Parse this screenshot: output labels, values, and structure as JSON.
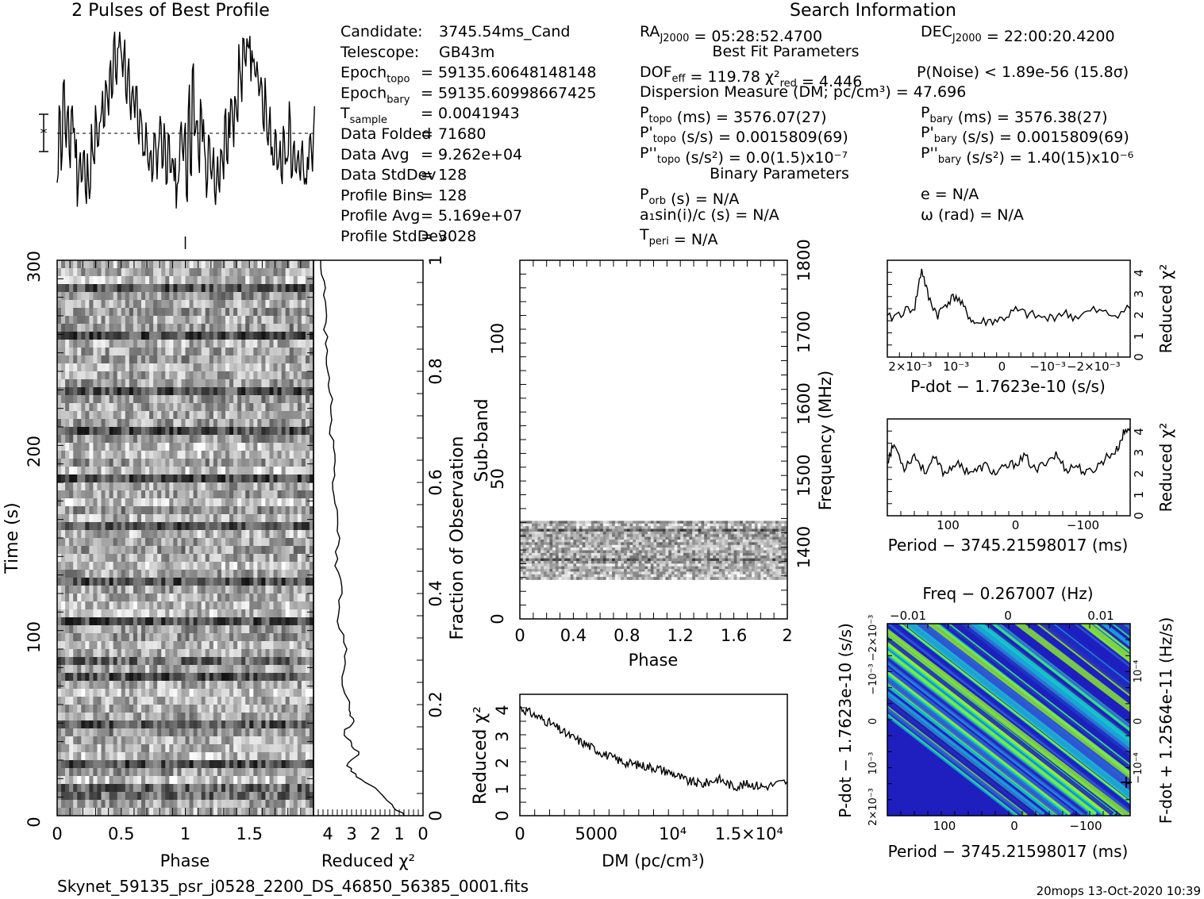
{
  "profile_title": "2 Pulses of Best Profile",
  "search_title": "Search Information",
  "info_left": [
    {
      "label": "Candidate:",
      "value": "3745.54ms_Cand"
    },
    {
      "label": "Telescope:",
      "value": "GB43m"
    },
    {
      "label": "Epoch",
      "sub": "topo",
      "value": "= 59135.60648148148"
    },
    {
      "label": "Epoch",
      "sub": "bary",
      "value": "= 59135.60998667425"
    },
    {
      "label": "T",
      "sub": "sample",
      "value": "=   0.0041943"
    },
    {
      "label": "Data Folded",
      "value": "=   71680"
    },
    {
      "label": "Data Avg",
      "value": "=   9.262e+04"
    },
    {
      "label": "Data StdDev",
      "value": "=   128"
    },
    {
      "label": "Profile Bins",
      "value": "=   128"
    },
    {
      "label": "Profile Avg",
      "value": "=   5.169e+07"
    },
    {
      "label": "Profile StdDev",
      "value": "=   3028"
    }
  ],
  "ra": "RA_J2000 = 05:28:52.4700",
  "dec": "DEC_J2000 = 22:00:20.4200",
  "best_fit_title": "Best Fit Parameters",
  "dof": "DOF_eff = 119.78  χ²_red = 4.446",
  "pnoise": "P(Noise) < 1.89e-56   (15.8σ)",
  "dm_line": "Dispersion Measure (DM; pc/cm³) = 47.696",
  "p_topo": "P_topo (ms) =  3576.07(27)",
  "p_bary": "P_bary (ms) =  3576.38(27)",
  "pd_topo": "P'_topo (s/s) =  0.0015809(69)",
  "pd_bary": "P'_bary (s/s) =  0.0015809(69)",
  "pdd_topo": "P''_topo (s/s²) = 0.0(1.5)x10⁻⁷",
  "pdd_bary": "P''_bary (s/s²) =  1.40(15)x10⁻⁶",
  "binary_title": "Binary Parameters",
  "porb": "P_orb (s) = N/A",
  "ecc": "e = N/A",
  "a1": "a₁sin(i)/c (s) = N/A",
  "omega": "ω (rad) = N/A",
  "tperi": "T_peri = N/A",
  "footer_file": "Skynet_59135_psr_j0528_2200_DS_46850_56385_0001.fits",
  "footer_stamp": "20mops 13-Oct-2020 10:39",
  "chart_data": [
    {
      "type": "line",
      "panel": "pulse-profile",
      "title": "2 Pulses of Best Profile",
      "note": "128 bins shown twice, normalized amplitude",
      "values": [
        0.18,
        0.65,
        0.32,
        0.78,
        0.42,
        0.55,
        0.28,
        0.62,
        0.48,
        0.38,
        0.15,
        0.4,
        0.22,
        0.35,
        0.12,
        0.3,
        0.2,
        0.45,
        0.28,
        0.55,
        0.35,
        0.5,
        0.62,
        0.45,
        0.72,
        0.6,
        0.85,
        0.7,
        0.95,
        0.78,
        0.88,
        1.0,
        0.82,
        0.9,
        0.7,
        0.8,
        0.62,
        0.75,
        0.55,
        0.68,
        0.48,
        0.58,
        0.42,
        0.3,
        0.5,
        0.25,
        0.35,
        0.22,
        0.45,
        0.3,
        0.4,
        0.55,
        0.32,
        0.48,
        0.28,
        0.38,
        0.2,
        0.35,
        0.25,
        0.15,
        0.3,
        0.45,
        0.35,
        0.52
      ]
    },
    {
      "type": "heatmap",
      "panel": "time-phase",
      "xlabel": "Phase",
      "ylabel": "Time (s)",
      "xlim": [
        0,
        2
      ],
      "ylim": [
        0,
        300
      ],
      "xticks": [
        "0",
        "0.5",
        "1",
        "1.5"
      ],
      "yticks": [
        "0",
        "100",
        "200",
        "300"
      ]
    },
    {
      "type": "line",
      "panel": "time-chi2",
      "xlabel": "Reduced χ²",
      "ylabel": "Fraction of Observation",
      "xlim": [
        4.6,
        0
      ],
      "ylim": [
        0,
        1
      ],
      "xticks": [
        "4",
        "3",
        "2",
        "1",
        "0"
      ],
      "yticks": [
        "0",
        "0.2",
        "0.4",
        "0.6",
        "0.8",
        "1"
      ],
      "points": [
        [
          0.8,
          0
        ],
        [
          1.3,
          0.02
        ],
        [
          2.0,
          0.05
        ],
        [
          2.8,
          0.07
        ],
        [
          3.2,
          0.09
        ],
        [
          2.7,
          0.11
        ],
        [
          3.0,
          0.13
        ],
        [
          3.3,
          0.15
        ],
        [
          2.9,
          0.17
        ],
        [
          3.1,
          0.19
        ],
        [
          3.4,
          0.25
        ],
        [
          3.2,
          0.3
        ],
        [
          3.6,
          0.35
        ],
        [
          3.4,
          0.4
        ],
        [
          3.7,
          0.45
        ],
        [
          3.5,
          0.5
        ],
        [
          3.6,
          0.55
        ],
        [
          3.8,
          0.6
        ],
        [
          3.7,
          0.65
        ],
        [
          3.9,
          0.7
        ],
        [
          3.8,
          0.75
        ],
        [
          4.0,
          0.8
        ],
        [
          4.1,
          0.85
        ],
        [
          4.05,
          0.9
        ],
        [
          4.1,
          0.95
        ],
        [
          4.3,
          1.0
        ]
      ]
    },
    {
      "type": "heatmap",
      "panel": "subband-phase",
      "xlabel": "Phase",
      "ylabel": "Sub-band",
      "y2label": "Frequency (MHz)",
      "xlim": [
        0,
        2
      ],
      "ylim": [
        0,
        128
      ],
      "y2lim": [
        1300,
        1800
      ],
      "xticks": [
        "0",
        "0.4",
        "0.8",
        "1.2",
        "1.6",
        "2"
      ],
      "yticks": [
        "0",
        "50",
        "100"
      ],
      "y2ticks": [
        "1400",
        "1500",
        "1600",
        "1700",
        "1800"
      ],
      "active_subbands": [
        14,
        35
      ]
    },
    {
      "type": "line",
      "panel": "dm-chi2",
      "xlabel": "DM (pc/cm³)",
      "ylabel": "Reduced χ²",
      "xlim": [
        0,
        17500
      ],
      "ylim": [
        0,
        4.6
      ],
      "xticks": [
        "0",
        "5000",
        "10⁴",
        "1.5×10⁴"
      ],
      "yticks": [
        "0",
        "1",
        "2",
        "3",
        "4"
      ],
      "points": [
        [
          0,
          4.1
        ],
        [
          1000,
          3.8
        ],
        [
          2000,
          3.5
        ],
        [
          3000,
          3.1
        ],
        [
          4000,
          2.8
        ],
        [
          5000,
          2.5
        ],
        [
          6000,
          2.2
        ],
        [
          7000,
          2.0
        ],
        [
          8000,
          1.9
        ],
        [
          9000,
          1.8
        ],
        [
          10000,
          1.6
        ],
        [
          11000,
          1.3
        ],
        [
          12000,
          1.2
        ],
        [
          13000,
          1.4
        ],
        [
          14000,
          1.1
        ],
        [
          15000,
          1.2
        ],
        [
          16000,
          1.1
        ],
        [
          17500,
          1.3
        ]
      ]
    },
    {
      "type": "line",
      "panel": "pdot-chi2",
      "xlabel": "P-dot − 1.7623e-10 (s/s)",
      "ylabel": "Reduced χ²",
      "xlim": [
        0.0025,
        -0.0028
      ],
      "ylim": [
        0,
        4.6
      ],
      "xticks": [
        "2×10⁻³",
        "10⁻³",
        "0",
        "−10⁻³",
        "−2×10⁻³"
      ],
      "yticks": [
        "0",
        "1",
        "2",
        "3",
        "4"
      ],
      "points": [
        [
          0.0025,
          1.8
        ],
        [
          0.0022,
          2.1
        ],
        [
          0.0019,
          2.4
        ],
        [
          0.00175,
          4.2
        ],
        [
          0.0016,
          2.8
        ],
        [
          0.0014,
          2.0
        ],
        [
          0.0012,
          2.6
        ],
        [
          0.001,
          2.9
        ],
        [
          0.0008,
          2.2
        ],
        [
          0.0006,
          1.6
        ],
        [
          0.0003,
          1.7
        ],
        [
          0,
          1.8
        ],
        [
          -0.0003,
          2.2
        ],
        [
          -0.0006,
          2.0
        ],
        [
          -0.001,
          1.8
        ],
        [
          -0.0013,
          2.1
        ],
        [
          -0.0016,
          1.9
        ],
        [
          -0.002,
          2.2
        ],
        [
          -0.0024,
          2.0
        ],
        [
          -0.0028,
          2.3
        ]
      ]
    },
    {
      "type": "line",
      "panel": "period-chi2",
      "xlabel": "Period − 3745.21598017 (ms)",
      "ylabel": "Reduced χ²",
      "xlim": [
        190,
        -170
      ],
      "ylim": [
        0,
        4.6
      ],
      "xticks": [
        "100",
        "0",
        "−100"
      ],
      "yticks": [
        "0",
        "1",
        "2",
        "3",
        "4"
      ],
      "points": [
        [
          190,
          2.6
        ],
        [
          180,
          3.4
        ],
        [
          165,
          2.3
        ],
        [
          150,
          2.9
        ],
        [
          135,
          2.1
        ],
        [
          120,
          2.7
        ],
        [
          105,
          2.0
        ],
        [
          90,
          2.5
        ],
        [
          75,
          2.2
        ],
        [
          60,
          2.1
        ],
        [
          45,
          2.4
        ],
        [
          30,
          2.0
        ],
        [
          15,
          2.3
        ],
        [
          0,
          2.5
        ],
        [
          -15,
          2.8
        ],
        [
          -30,
          2.1
        ],
        [
          -45,
          2.6
        ],
        [
          -60,
          2.9
        ],
        [
          -75,
          2.2
        ],
        [
          -90,
          2.4
        ],
        [
          -105,
          2.0
        ],
        [
          -120,
          2.3
        ],
        [
          -135,
          2.8
        ],
        [
          -150,
          3.1
        ],
        [
          -160,
          3.9
        ],
        [
          -170,
          4.2
        ]
      ]
    },
    {
      "type": "heatmap",
      "panel": "period-pdot",
      "top_label": "Freq − 0.267007 (Hz)",
      "xlabel": "Period − 3745.21598017 (ms)",
      "ylabel": "P-dot − 1.7623e-10 (s/s)",
      "y2label": "F-dot + 1.2564e-11 (Hz/s)",
      "xticks": [
        "100",
        "0",
        "−100"
      ],
      "top_ticks": [
        "−0.01",
        "0",
        "0.01"
      ],
      "yticks": [
        "2×10⁻³",
        "10⁻³",
        "0",
        "−10⁻³",
        "−2×10⁻³"
      ],
      "y2ticks": [
        "−10⁻⁴",
        "0",
        "10⁻⁴"
      ],
      "colors": [
        "#1f1fbf",
        "#2f5fd6",
        "#1aa7d8",
        "#12d3c8",
        "#31e28a",
        "#8ef02a"
      ]
    }
  ]
}
